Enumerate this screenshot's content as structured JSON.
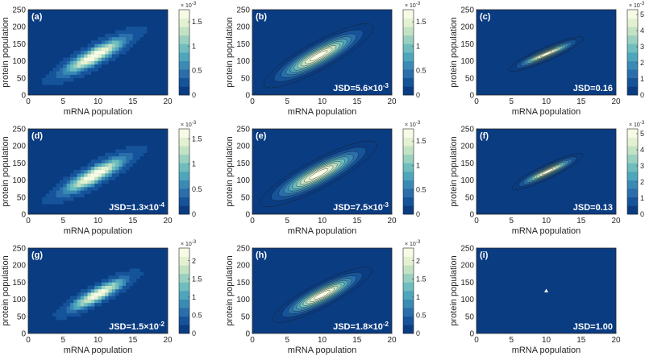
{
  "colormap": [
    "#0a3c82",
    "#15539a",
    "#2a6eab",
    "#3a8ab6",
    "#4ea6bd",
    "#6fbdbe",
    "#99d0c0",
    "#c3e2c4",
    "#e4f1d1",
    "#f7fbe6"
  ],
  "chart_data": [
    {
      "type": "heatmap",
      "label": "(a)",
      "style": "histogram",
      "jsd": "",
      "xlabel": "mRNA population",
      "ylabel": "protein population",
      "xlim": [
        0,
        20
      ],
      "ylim": [
        0,
        250
      ],
      "xticks": [
        0,
        5,
        10,
        15,
        20
      ],
      "yticks": [
        0,
        50,
        100,
        150,
        200,
        250
      ],
      "mean": [
        9.5,
        115
      ],
      "sx": 3.0,
      "sy": 36,
      "rho": 0.87,
      "cbar_max": 1.75,
      "cbar_ticks": [
        0,
        0.5,
        1,
        1.5
      ],
      "cbar_multiplier": "× 10",
      "cbar_exponent": "-3"
    },
    {
      "type": "heatmap",
      "label": "(b)",
      "style": "contour",
      "jsd": "JSD=5.6×10",
      "jsd_exp": "-3",
      "xlabel": "mRNA population",
      "ylabel": "protein population",
      "xlim": [
        0,
        20
      ],
      "ylim": [
        0,
        250
      ],
      "xticks": [
        0,
        5,
        10,
        15,
        20
      ],
      "yticks": [
        0,
        50,
        100,
        150,
        200,
        250
      ],
      "mean": [
        9.5,
        115
      ],
      "sx": 3.1,
      "sy": 37,
      "rho": 0.87,
      "cbar_max": 1.75,
      "cbar_ticks": [
        0,
        0.5,
        1,
        1.5
      ],
      "cbar_multiplier": "× 10",
      "cbar_exponent": "-3"
    },
    {
      "type": "heatmap",
      "label": "(c)",
      "style": "contour",
      "jsd": "JSD=0.16",
      "jsd_exp": "",
      "xlabel": "mRNA population",
      "ylabel": "protein population",
      "xlim": [
        0,
        20
      ],
      "ylim": [
        0,
        250
      ],
      "xticks": [
        0,
        5,
        10,
        15,
        20
      ],
      "yticks": [
        0,
        50,
        100,
        150,
        200,
        250
      ],
      "mean": [
        10,
        120
      ],
      "sx": 2.1,
      "sy": 20,
      "rho": 0.9,
      "cbar_max": 5.3,
      "cbar_ticks": [
        0,
        1,
        2,
        3,
        4,
        5
      ],
      "cbar_multiplier": "× 10",
      "cbar_exponent": "-3"
    },
    {
      "type": "heatmap",
      "label": "(d)",
      "style": "histogram",
      "jsd": "JSD=1.3×10",
      "jsd_exp": "-4",
      "xlabel": "mRNA population",
      "ylabel": "protein population",
      "xlim": [
        0,
        20
      ],
      "ylim": [
        0,
        250
      ],
      "xticks": [
        0,
        5,
        10,
        15,
        20
      ],
      "yticks": [
        0,
        50,
        100,
        150,
        200,
        250
      ],
      "mean": [
        9.5,
        115
      ],
      "sx": 3.0,
      "sy": 36,
      "rho": 0.87,
      "cbar_max": 1.7,
      "cbar_ticks": [
        0,
        0.5,
        1,
        1.5
      ],
      "cbar_multiplier": "× 10",
      "cbar_exponent": "-3"
    },
    {
      "type": "heatmap",
      "label": "(e)",
      "style": "contour",
      "jsd": "JSD=7.5×10",
      "jsd_exp": "-3",
      "xlabel": "mRNA population",
      "ylabel": "protein population",
      "xlim": [
        0,
        20
      ],
      "ylim": [
        0,
        250
      ],
      "xticks": [
        0,
        5,
        10,
        15,
        20
      ],
      "yticks": [
        0,
        50,
        100,
        150,
        200,
        250
      ],
      "mean": [
        9.5,
        118
      ],
      "sx": 3.3,
      "sy": 38,
      "rho": 0.87,
      "cbar_max": 1.75,
      "cbar_ticks": [
        0,
        0.5,
        1,
        1.5
      ],
      "cbar_multiplier": "× 10",
      "cbar_exponent": "-3"
    },
    {
      "type": "heatmap",
      "label": "(f)",
      "style": "contour",
      "jsd": "JSD=0.13",
      "jsd_exp": "",
      "xlabel": "mRNA population",
      "ylabel": "protein population",
      "xlim": [
        0,
        20
      ],
      "ylim": [
        0,
        250
      ],
      "xticks": [
        0,
        5,
        10,
        15,
        20
      ],
      "yticks": [
        0,
        50,
        100,
        150,
        200,
        250
      ],
      "mean": [
        10.2,
        125
      ],
      "sx": 2.0,
      "sy": 21,
      "rho": 0.9,
      "cbar_max": 5.3,
      "cbar_ticks": [
        0,
        1,
        2,
        3,
        4,
        5
      ],
      "cbar_multiplier": "× 10",
      "cbar_exponent": "-3"
    },
    {
      "type": "heatmap",
      "label": "(g)",
      "style": "histogram",
      "jsd": "JSD=1.5×10",
      "jsd_exp": "-2",
      "xlabel": "mRNA population",
      "ylabel": "protein population",
      "xlim": [
        0,
        20
      ],
      "ylim": [
        0,
        250
      ],
      "xticks": [
        0,
        5,
        10,
        15,
        20
      ],
      "yticks": [
        0,
        50,
        100,
        150,
        200,
        250
      ],
      "mean": [
        10,
        115
      ],
      "sx": 2.6,
      "sy": 30,
      "rho": 0.87,
      "cbar_max": 2.35,
      "cbar_ticks": [
        0,
        0.5,
        1,
        1.5,
        2
      ],
      "cbar_multiplier": "× 10",
      "cbar_exponent": "-3"
    },
    {
      "type": "heatmap",
      "label": "(h)",
      "style": "contour",
      "jsd": "JSD=1.8×10",
      "jsd_exp": "-2",
      "xlabel": "mRNA population",
      "ylabel": "protein population",
      "xlim": [
        0,
        20
      ],
      "ylim": [
        0,
        250
      ],
      "xticks": [
        0,
        5,
        10,
        15,
        20
      ],
      "yticks": [
        0,
        50,
        100,
        150,
        200,
        250
      ],
      "mean": [
        10,
        113
      ],
      "sx": 2.8,
      "sy": 32,
      "rho": 0.87,
      "cbar_max": 2.35,
      "cbar_ticks": [
        0,
        0.5,
        1,
        1.5,
        2
      ],
      "cbar_multiplier": "× 10",
      "cbar_exponent": "-3"
    },
    {
      "type": "heatmap",
      "label": "(i)",
      "style": "point",
      "jsd": "JSD=1.00",
      "jsd_exp": "",
      "xlabel": "mRNA population",
      "ylabel": "protein population",
      "xlim": [
        0,
        20
      ],
      "ylim": [
        0,
        250
      ],
      "xticks": [
        0,
        5,
        10,
        15,
        20
      ],
      "yticks": [
        0,
        50,
        100,
        150,
        200,
        250
      ],
      "point": [
        10,
        125
      ]
    }
  ]
}
